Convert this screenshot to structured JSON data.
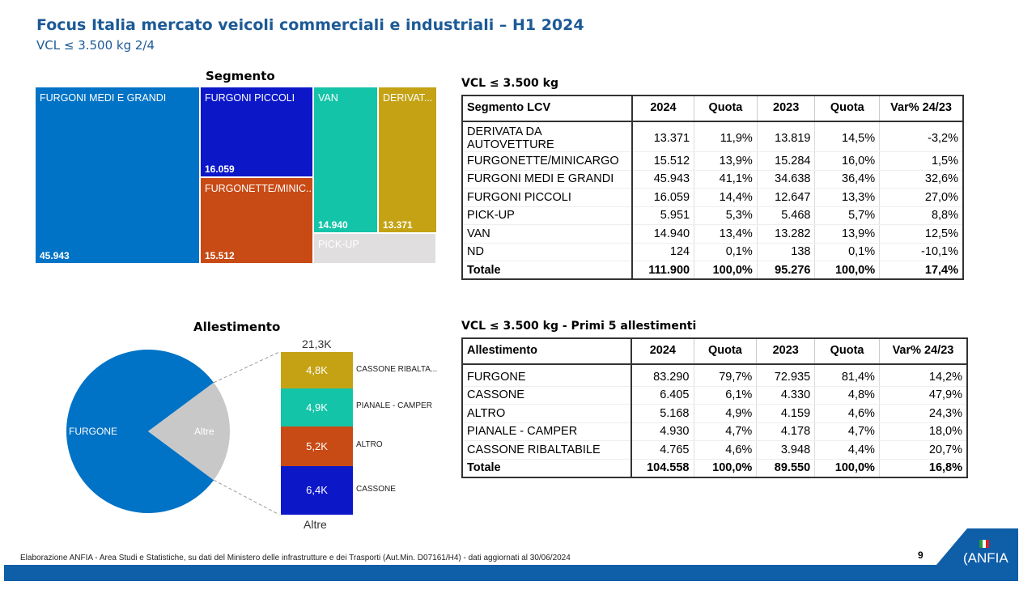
{
  "header": {
    "title": "Focus Italia mercato veicoli commerciali e industriali – H1 2024",
    "subtitle": "VCL ≤ 3.500 kg 2/4"
  },
  "chart_data": [
    {
      "type": "treemap",
      "title": "Segmento",
      "items": [
        {
          "label": "FURGONI MEDI E GRANDI",
          "value": "45.943",
          "color": "#0073c6"
        },
        {
          "label": "FURGONI PICCOLI",
          "value": "16.059",
          "color": "#0c18c8"
        },
        {
          "label": "FURGONETTE/MINIC...",
          "value": "15.512",
          "color": "#c84a14"
        },
        {
          "label": "VAN",
          "value": "14.940",
          "color": "#14c4a8"
        },
        {
          "label": "DERIVAT...",
          "value": "13.371",
          "color": "#c4a214"
        },
        {
          "label": "PICK-UP",
          "value": "",
          "color": "#e0dede"
        }
      ]
    },
    {
      "type": "pie",
      "title": "Allestimento",
      "slices": [
        {
          "label": "FURGONE",
          "value": 83290,
          "color": "#0073c6"
        },
        {
          "label": "Altre",
          "value": 21268,
          "color": "#c8c8c8"
        }
      ],
      "breakdown": {
        "label": "Altre",
        "total": "21,3K",
        "segments": [
          {
            "label": "CASSONE RIBALTA...",
            "value": "4,8K",
            "color": "#c4a214"
          },
          {
            "label": "PIANALE - CAMPER",
            "value": "4,9K",
            "color": "#14c4a8"
          },
          {
            "label": "ALTRO",
            "value": "5,2K",
            "color": "#c84a14"
          },
          {
            "label": "CASSONE",
            "value": "6,4K",
            "color": "#0c18c8"
          }
        ]
      }
    },
    {
      "type": "table",
      "title": "VCL ≤ 3.500 kg",
      "columns": [
        "Segmento LCV",
        "2024",
        "Quota",
        "2023",
        "Quota",
        "Var% 24/23"
      ],
      "rows": [
        [
          "DERIVATA DA AUTOVETTURE",
          "13.371",
          "11,9%",
          "13.819",
          "14,5%",
          "-3,2%"
        ],
        [
          "FURGONETTE/MINICARGO",
          "15.512",
          "13,9%",
          "15.284",
          "16,0%",
          "1,5%"
        ],
        [
          "FURGONI MEDI E GRANDI",
          "45.943",
          "41,1%",
          "34.638",
          "36,4%",
          "32,6%"
        ],
        [
          "FURGONI PICCOLI",
          "16.059",
          "14,4%",
          "12.647",
          "13,3%",
          "27,0%"
        ],
        [
          "PICK-UP",
          "5.951",
          "5,3%",
          "5.468",
          "5,7%",
          "8,8%"
        ],
        [
          "VAN",
          "14.940",
          "13,4%",
          "13.282",
          "13,9%",
          "12,5%"
        ],
        [
          "ND",
          "124",
          "0,1%",
          "138",
          "0,1%",
          "-10,1%"
        ]
      ],
      "total": [
        "Totale",
        "111.900",
        "100,0%",
        "95.276",
        "100,0%",
        "17,4%"
      ]
    },
    {
      "type": "table",
      "title": "VCL ≤ 3.500 kg - Primi 5 allestimenti",
      "columns": [
        "Allestimento",
        "2024",
        "Quota",
        "2023",
        "Quota",
        "Var% 24/23"
      ],
      "rows": [
        [
          "FURGONE",
          "83.290",
          "79,7%",
          "72.935",
          "81,4%",
          "14,2%"
        ],
        [
          "CASSONE",
          "6.405",
          "6,1%",
          "4.330",
          "4,8%",
          "47,9%"
        ],
        [
          "ALTRO",
          "5.168",
          "4,9%",
          "4.159",
          "4,6%",
          "24,3%"
        ],
        [
          "PIANALE - CAMPER",
          "4.930",
          "4,7%",
          "4.178",
          "4,7%",
          "18,0%"
        ],
        [
          "CASSONE RIBALTABILE",
          "4.765",
          "4,6%",
          "3.948",
          "4,4%",
          "20,7%"
        ]
      ],
      "total": [
        "Totale",
        "104.558",
        "100,0%",
        "89.550",
        "100,0%",
        "16,8%"
      ]
    }
  ],
  "footer": {
    "source": "Elaborazione ANFIA - Area Studi e Statistiche, su dati del Ministero delle infrastrutture e dei Trasporti (Aut.Min. D07161/H4) - dati aggiornati al 30/06/2024",
    "page": "9",
    "logo": "ANFIA"
  }
}
